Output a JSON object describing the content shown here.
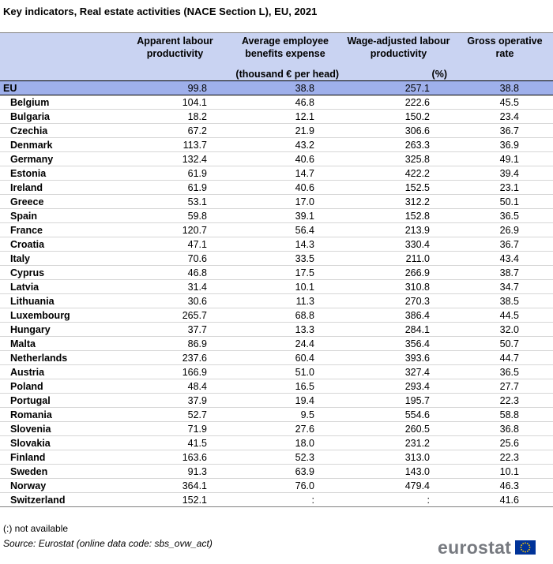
{
  "title": "Key indicators, Real estate activities (NACE Section L), EU, 2021",
  "table": {
    "headers": [
      "",
      "Apparent labour productivity",
      "Average employee benefits expense",
      "Wage-adjusted labour productivity",
      "Gross operative rate"
    ],
    "unit_left": "(thousand € per head)",
    "unit_right": "(%)",
    "eu_row": {
      "name": "EU",
      "values": [
        "99.8",
        "38.8",
        "257.1",
        "38.8"
      ]
    },
    "rows": [
      {
        "name": "Belgium",
        "values": [
          "104.1",
          "46.8",
          "222.6",
          "45.5"
        ]
      },
      {
        "name": "Bulgaria",
        "values": [
          "18.2",
          "12.1",
          "150.2",
          "23.4"
        ]
      },
      {
        "name": "Czechia",
        "values": [
          "67.2",
          "21.9",
          "306.6",
          "36.7"
        ]
      },
      {
        "name": "Denmark",
        "values": [
          "113.7",
          "43.2",
          "263.3",
          "36.9"
        ]
      },
      {
        "name": "Germany",
        "values": [
          "132.4",
          "40.6",
          "325.8",
          "49.1"
        ]
      },
      {
        "name": "Estonia",
        "values": [
          "61.9",
          "14.7",
          "422.2",
          "39.4"
        ]
      },
      {
        "name": "Ireland",
        "values": [
          "61.9",
          "40.6",
          "152.5",
          "23.1"
        ]
      },
      {
        "name": "Greece",
        "values": [
          "53.1",
          "17.0",
          "312.2",
          "50.1"
        ]
      },
      {
        "name": "Spain",
        "values": [
          "59.8",
          "39.1",
          "152.8",
          "36.5"
        ]
      },
      {
        "name": "France",
        "values": [
          "120.7",
          "56.4",
          "213.9",
          "26.9"
        ]
      },
      {
        "name": "Croatia",
        "values": [
          "47.1",
          "14.3",
          "330.4",
          "36.7"
        ]
      },
      {
        "name": "Italy",
        "values": [
          "70.6",
          "33.5",
          "211.0",
          "43.4"
        ]
      },
      {
        "name": "Cyprus",
        "values": [
          "46.8",
          "17.5",
          "266.9",
          "38.7"
        ]
      },
      {
        "name": "Latvia",
        "values": [
          "31.4",
          "10.1",
          "310.8",
          "34.7"
        ]
      },
      {
        "name": "Lithuania",
        "values": [
          "30.6",
          "11.3",
          "270.3",
          "38.5"
        ]
      },
      {
        "name": "Luxembourg",
        "values": [
          "265.7",
          "68.8",
          "386.4",
          "44.5"
        ]
      },
      {
        "name": "Hungary",
        "values": [
          "37.7",
          "13.3",
          "284.1",
          "32.0"
        ]
      },
      {
        "name": "Malta",
        "values": [
          "86.9",
          "24.4",
          "356.4",
          "50.7"
        ]
      },
      {
        "name": "Netherlands",
        "values": [
          "237.6",
          "60.4",
          "393.6",
          "44.7"
        ]
      },
      {
        "name": "Austria",
        "values": [
          "166.9",
          "51.0",
          "327.4",
          "36.5"
        ]
      },
      {
        "name": "Poland",
        "values": [
          "48.4",
          "16.5",
          "293.4",
          "27.7"
        ]
      },
      {
        "name": "Portugal",
        "values": [
          "37.9",
          "19.4",
          "195.7",
          "22.3"
        ]
      },
      {
        "name": "Romania",
        "values": [
          "52.7",
          "9.5",
          "554.6",
          "58.8"
        ]
      },
      {
        "name": "Slovenia",
        "values": [
          "71.9",
          "27.6",
          "260.5",
          "36.8"
        ]
      },
      {
        "name": "Slovakia",
        "values": [
          "41.5",
          "18.0",
          "231.2",
          "25.6"
        ]
      },
      {
        "name": "Finland",
        "values": [
          "163.6",
          "52.3",
          "313.0",
          "22.3"
        ]
      },
      {
        "name": "Sweden",
        "values": [
          "91.3",
          "63.9",
          "143.0",
          "10.1"
        ]
      }
    ],
    "efta_rows": [
      {
        "name": "Norway",
        "values": [
          "364.1",
          "76.0",
          "479.4",
          "46.3"
        ]
      },
      {
        "name": "Switzerland",
        "values": [
          "152.1",
          ":",
          ":",
          "41.6"
        ]
      }
    ]
  },
  "footnote": "(:) not available",
  "source": "Source: Eurostat (online data code: sbs_ovw_act)",
  "logo": {
    "text": "eurostat",
    "icon": "eu-flag-icon",
    "colors": {
      "flag_blue": "#003399",
      "flag_stars": "#ffcc00",
      "text": "#777a80"
    }
  },
  "colors": {
    "header_bg": "#c9d3f2",
    "eu_row_bg": "#9fb0eb"
  }
}
